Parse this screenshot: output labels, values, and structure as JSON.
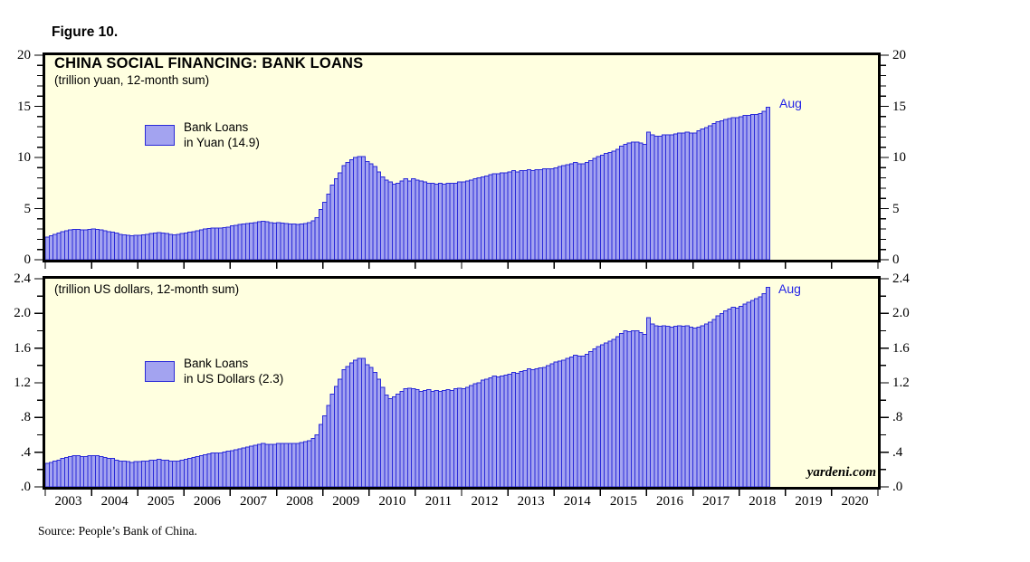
{
  "figure": {
    "label": "Figure 10."
  },
  "source_note": "Source: People’s Bank of China.",
  "branding": "yardeni.com",
  "colors": {
    "panel_background": "#ffffe0",
    "bar_fill": "#a3a3f0",
    "bar_border": "#2a2ad8",
    "accent_blue": "#2323e6",
    "frame_black": "#000000"
  },
  "x_axis": {
    "start_year": 2003,
    "end_year_boundary": 2021,
    "tick_labels": [
      "2003",
      "2004",
      "2005",
      "2006",
      "2007",
      "2008",
      "2009",
      "2010",
      "2011",
      "2012",
      "2013",
      "2014",
      "2015",
      "2016",
      "2017",
      "2018",
      "2019",
      "2020"
    ]
  },
  "chart_data": [
    {
      "type": "bar",
      "title": "CHINA SOCIAL FINANCING: BANK LOANS",
      "subtitle": "(trillion yuan, 12-month sum)",
      "legend_lines": [
        "Bank Loans",
        "in Yuan (14.9)"
      ],
      "end_label": "Aug",
      "ylabel": "trillion yuan",
      "ylim": [
        0,
        20
      ],
      "ytick_values": [
        0,
        5,
        10,
        15,
        20
      ],
      "ytick_labels": [
        "0",
        "5",
        "10",
        "15",
        "20"
      ],
      "minor_tick_step": 1,
      "x_monthly_start": "2003-01",
      "x_monthly_end": "2018-08",
      "series": [
        {
          "name": "Bank Loans in Yuan",
          "last_value": 14.9,
          "values": [
            2.2,
            2.35,
            2.5,
            2.6,
            2.75,
            2.85,
            2.9,
            2.95,
            2.95,
            2.9,
            2.9,
            2.95,
            3.0,
            2.95,
            2.9,
            2.85,
            2.75,
            2.7,
            2.6,
            2.5,
            2.45,
            2.4,
            2.35,
            2.4,
            2.4,
            2.45,
            2.5,
            2.55,
            2.6,
            2.65,
            2.6,
            2.55,
            2.5,
            2.45,
            2.5,
            2.55,
            2.6,
            2.7,
            2.75,
            2.85,
            2.9,
            3.0,
            3.05,
            3.1,
            3.1,
            3.1,
            3.15,
            3.2,
            3.3,
            3.35,
            3.45,
            3.5,
            3.55,
            3.6,
            3.65,
            3.7,
            3.75,
            3.7,
            3.65,
            3.6,
            3.65,
            3.6,
            3.55,
            3.5,
            3.5,
            3.45,
            3.5,
            3.55,
            3.65,
            3.8,
            4.1,
            4.9,
            5.6,
            6.4,
            7.3,
            7.9,
            8.5,
            9.2,
            9.5,
            9.8,
            10.0,
            10.1,
            10.1,
            9.6,
            9.4,
            9.1,
            8.6,
            8.1,
            7.8,
            7.6,
            7.4,
            7.5,
            7.7,
            7.9,
            7.7,
            7.9,
            7.8,
            7.7,
            7.6,
            7.5,
            7.5,
            7.4,
            7.5,
            7.4,
            7.5,
            7.5,
            7.5,
            7.6,
            7.6,
            7.7,
            7.8,
            7.9,
            8.0,
            8.1,
            8.2,
            8.3,
            8.4,
            8.4,
            8.5,
            8.5,
            8.6,
            8.7,
            8.6,
            8.7,
            8.7,
            8.8,
            8.7,
            8.8,
            8.8,
            8.9,
            8.9,
            8.9,
            9.0,
            9.1,
            9.2,
            9.3,
            9.4,
            9.5,
            9.4,
            9.4,
            9.5,
            9.7,
            9.9,
            10.1,
            10.2,
            10.4,
            10.5,
            10.6,
            10.8,
            11.1,
            11.3,
            11.4,
            11.5,
            11.5,
            11.4,
            11.3,
            12.5,
            12.2,
            12.1,
            12.1,
            12.2,
            12.2,
            12.2,
            12.3,
            12.4,
            12.4,
            12.5,
            12.4,
            12.4,
            12.6,
            12.8,
            12.9,
            13.1,
            13.3,
            13.5,
            13.6,
            13.7,
            13.8,
            13.9,
            13.9,
            14.0,
            14.1,
            14.1,
            14.2,
            14.2,
            14.3,
            14.5,
            14.9
          ]
        }
      ]
    },
    {
      "type": "bar",
      "title": "",
      "subtitle": "(trillion US dollars, 12-month sum)",
      "legend_lines": [
        "Bank Loans",
        "in US Dollars (2.3)"
      ],
      "end_label": "Aug",
      "ylabel": "trillion US dollars",
      "ylim": [
        0,
        2.4
      ],
      "ytick_values": [
        0,
        0.4,
        0.8,
        1.2,
        1.6,
        2.0,
        2.4
      ],
      "ytick_labels": [
        ".0",
        ".4",
        ".8",
        "1.2",
        "1.6",
        "2.0",
        "2.4"
      ],
      "minor_tick_step": 0.2,
      "x_monthly_start": "2003-01",
      "x_monthly_end": "2018-08",
      "series": [
        {
          "name": "Bank Loans in US Dollars",
          "last_value": 2.3,
          "values": [
            0.27,
            0.28,
            0.3,
            0.31,
            0.33,
            0.34,
            0.35,
            0.36,
            0.36,
            0.35,
            0.35,
            0.36,
            0.36,
            0.36,
            0.35,
            0.34,
            0.33,
            0.33,
            0.31,
            0.3,
            0.3,
            0.29,
            0.28,
            0.29,
            0.29,
            0.3,
            0.3,
            0.31,
            0.31,
            0.32,
            0.31,
            0.31,
            0.3,
            0.3,
            0.3,
            0.31,
            0.32,
            0.33,
            0.34,
            0.35,
            0.36,
            0.37,
            0.38,
            0.39,
            0.39,
            0.39,
            0.4,
            0.41,
            0.42,
            0.43,
            0.44,
            0.45,
            0.46,
            0.47,
            0.48,
            0.49,
            0.5,
            0.49,
            0.49,
            0.49,
            0.5,
            0.5,
            0.5,
            0.5,
            0.5,
            0.5,
            0.51,
            0.52,
            0.53,
            0.56,
            0.6,
            0.72,
            0.82,
            0.94,
            1.07,
            1.16,
            1.24,
            1.35,
            1.39,
            1.43,
            1.46,
            1.48,
            1.48,
            1.41,
            1.38,
            1.32,
            1.24,
            1.15,
            1.06,
            1.02,
            1.04,
            1.07,
            1.1,
            1.13,
            1.14,
            1.13,
            1.12,
            1.1,
            1.11,
            1.12,
            1.1,
            1.11,
            1.1,
            1.11,
            1.12,
            1.11,
            1.13,
            1.14,
            1.13,
            1.15,
            1.17,
            1.19,
            1.2,
            1.23,
            1.24,
            1.26,
            1.28,
            1.27,
            1.28,
            1.29,
            1.3,
            1.32,
            1.31,
            1.33,
            1.34,
            1.36,
            1.35,
            1.36,
            1.37,
            1.38,
            1.4,
            1.42,
            1.44,
            1.45,
            1.46,
            1.48,
            1.5,
            1.52,
            1.51,
            1.51,
            1.53,
            1.56,
            1.59,
            1.62,
            1.64,
            1.66,
            1.68,
            1.7,
            1.73,
            1.77,
            1.8,
            1.79,
            1.8,
            1.8,
            1.78,
            1.76,
            1.95,
            1.88,
            1.86,
            1.85,
            1.86,
            1.85,
            1.84,
            1.85,
            1.86,
            1.85,
            1.86,
            1.84,
            1.83,
            1.84,
            1.86,
            1.88,
            1.9,
            1.93,
            1.97,
            2.0,
            2.03,
            2.05,
            2.07,
            2.06,
            2.08,
            2.11,
            2.13,
            2.15,
            2.17,
            2.19,
            2.23,
            2.3
          ]
        }
      ]
    }
  ]
}
